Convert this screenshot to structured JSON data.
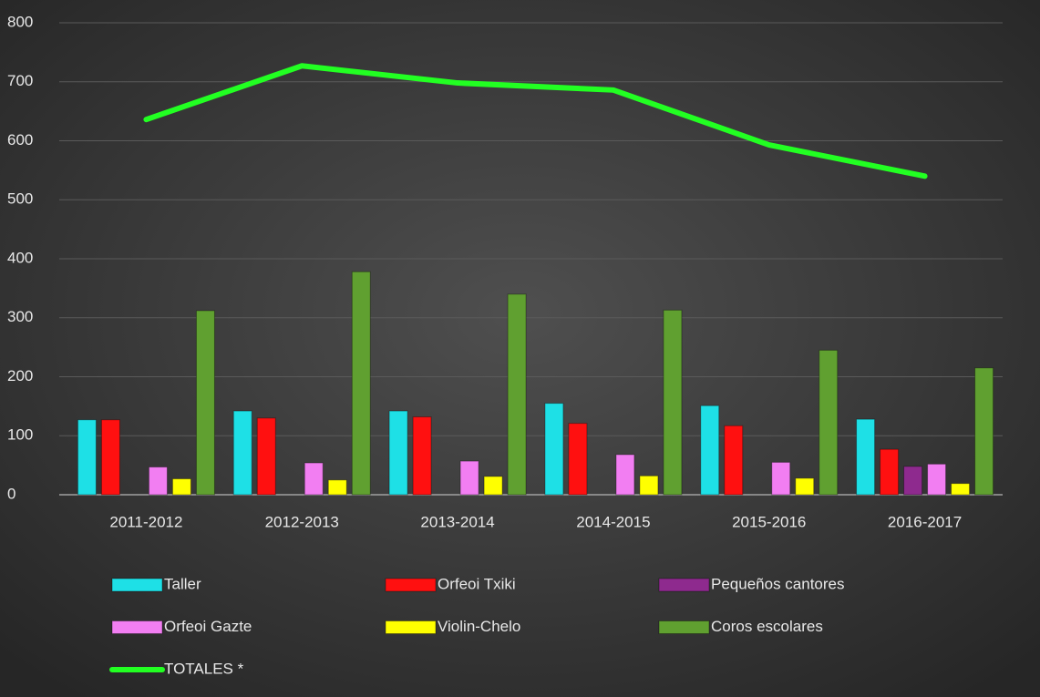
{
  "chart_data": {
    "type": "bar",
    "categories": [
      "2011-2012",
      "2012-2013",
      "2013-2014",
      "2014-2015",
      "2015-2016",
      "2016-2017"
    ],
    "series": [
      {
        "name": "Taller",
        "color": "#1ee0e6",
        "values": [
          127,
          142,
          142,
          155,
          151,
          128
        ]
      },
      {
        "name": "Orfeoi Txiki",
        "color": "#ff1010",
        "values": [
          127,
          130,
          132,
          121,
          117,
          77
        ]
      },
      {
        "name": "Pequeños cantores",
        "color": "#8e2a8e",
        "values": [
          null,
          null,
          null,
          null,
          null,
          48
        ]
      },
      {
        "name": "Orfeoi Gazte",
        "color": "#f27ef2",
        "values": [
          47,
          54,
          57,
          68,
          55,
          52
        ]
      },
      {
        "name": "Violin-Chelo",
        "color": "#ffff00",
        "values": [
          27,
          25,
          31,
          32,
          28,
          19
        ]
      },
      {
        "name": "Coros escolares",
        "color": "#60a030",
        "values": [
          312,
          378,
          340,
          313,
          245,
          215
        ]
      },
      {
        "name": "TOTALES *",
        "color": "#22ff22",
        "type": "line",
        "values": [
          636,
          727,
          698,
          686,
          593,
          540
        ]
      }
    ],
    "ylim": [
      0,
      800
    ],
    "yticks": [
      0,
      100,
      200,
      300,
      400,
      500,
      600,
      700,
      800
    ],
    "grid": true,
    "legend": "bottom"
  }
}
